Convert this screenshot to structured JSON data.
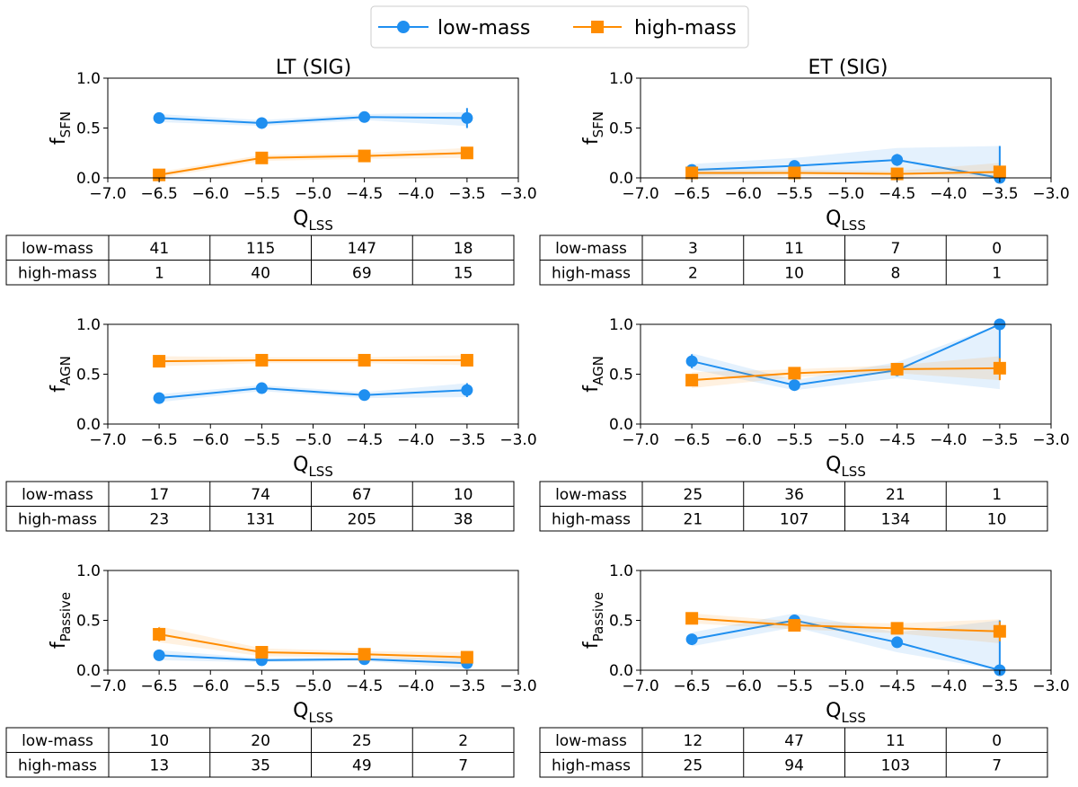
{
  "colors": {
    "low": "#1f8ff0",
    "high": "#ff8c00",
    "axis": "#000000"
  },
  "legend": {
    "placement": "top-center",
    "items": [
      {
        "label": "low-mass",
        "series": "low",
        "marker": "circle"
      },
      {
        "label": "high-mass",
        "series": "high",
        "marker": "square"
      }
    ]
  },
  "column_titles": [
    "LT (SIG)",
    "ET (SIG)"
  ],
  "table_row_labels": [
    "low-mass",
    "high-mass"
  ],
  "chart_data": [
    {
      "id": "lt-sfn",
      "type": "line",
      "title": "LT (SIG)",
      "xlabel": "Q",
      "xlabel_sub": "LSS",
      "ylabel": "f",
      "ylabel_sub": "SFN",
      "x": [
        -6.5,
        -5.5,
        -4.5,
        -3.5
      ],
      "xlim": [
        -7.0,
        -3.0
      ],
      "ylim": [
        0.0,
        1.0
      ],
      "xticks": [
        "−7.0",
        "−6.5",
        "−6.0",
        "−5.5",
        "−5.0",
        "−4.5",
        "−4.0",
        "−3.5",
        "−3.0"
      ],
      "yticks": [
        "0.0",
        "0.5",
        "1.0"
      ],
      "series": [
        {
          "name": "low-mass",
          "key": "low",
          "values": [
            0.6,
            0.55,
            0.61,
            0.6
          ],
          "band_lower": [
            0.56,
            0.52,
            0.58,
            0.52
          ],
          "band_upper": [
            0.64,
            0.58,
            0.64,
            0.66
          ],
          "err_lower": [
            0.57,
            0.53,
            0.59,
            0.5
          ],
          "err_upper": [
            0.63,
            0.57,
            0.63,
            0.7
          ]
        },
        {
          "name": "high-mass",
          "key": "high",
          "values": [
            0.03,
            0.2,
            0.22,
            0.25
          ],
          "band_lower": [
            0.0,
            0.17,
            0.19,
            0.2
          ],
          "band_upper": [
            0.06,
            0.23,
            0.25,
            0.3
          ],
          "err_lower": [
            0.0,
            0.18,
            0.2,
            0.21
          ],
          "err_upper": [
            0.06,
            0.22,
            0.24,
            0.29
          ]
        }
      ],
      "counts": [
        [
          "41",
          "115",
          "147",
          "18"
        ],
        [
          "1",
          "40",
          "69",
          "15"
        ]
      ]
    },
    {
      "id": "et-sfn",
      "type": "line",
      "title": "ET (SIG)",
      "xlabel": "Q",
      "xlabel_sub": "LSS",
      "ylabel": "f",
      "ylabel_sub": "SFN",
      "x": [
        -6.5,
        -5.5,
        -4.5,
        -3.5
      ],
      "xlim": [
        -7.0,
        -3.0
      ],
      "ylim": [
        0.0,
        1.0
      ],
      "xticks": [
        "−7.0",
        "−6.5",
        "−6.0",
        "−5.5",
        "−5.0",
        "−4.5",
        "−4.0",
        "−3.5",
        "−3.0"
      ],
      "yticks": [
        "0.0",
        "0.5",
        "1.0"
      ],
      "series": [
        {
          "name": "low-mass",
          "key": "low",
          "values": [
            0.08,
            0.12,
            0.18,
            0.0
          ],
          "band_lower": [
            0.02,
            0.04,
            0.06,
            0.0
          ],
          "band_upper": [
            0.14,
            0.2,
            0.3,
            0.32
          ],
          "err_lower": [
            0.03,
            0.08,
            0.12,
            0.0
          ],
          "err_upper": [
            0.13,
            0.16,
            0.24,
            0.32
          ]
        },
        {
          "name": "high-mass",
          "key": "high",
          "values": [
            0.05,
            0.05,
            0.04,
            0.06
          ],
          "band_lower": [
            0.01,
            0.02,
            0.01,
            0.0
          ],
          "band_upper": [
            0.09,
            0.08,
            0.07,
            0.15
          ],
          "err_lower": [
            0.02,
            0.03,
            0.02,
            0.0
          ],
          "err_upper": [
            0.08,
            0.07,
            0.06,
            0.12
          ]
        }
      ],
      "counts": [
        [
          "3",
          "11",
          "7",
          "0"
        ],
        [
          "2",
          "10",
          "8",
          "1"
        ]
      ]
    },
    {
      "id": "lt-agn",
      "type": "line",
      "title": "",
      "xlabel": "Q",
      "xlabel_sub": "LSS",
      "ylabel": "f",
      "ylabel_sub": "AGN",
      "x": [
        -6.5,
        -5.5,
        -4.5,
        -3.5
      ],
      "xlim": [
        -7.0,
        -3.0
      ],
      "ylim": [
        0.0,
        1.0
      ],
      "xticks": [
        "−7.0",
        "−6.5",
        "−6.0",
        "−5.5",
        "−5.0",
        "−4.5",
        "−4.0",
        "−3.5",
        "−3.0"
      ],
      "yticks": [
        "0.0",
        "0.5",
        "1.0"
      ],
      "series": [
        {
          "name": "low-mass",
          "key": "low",
          "values": [
            0.26,
            0.36,
            0.29,
            0.34
          ],
          "band_lower": [
            0.22,
            0.33,
            0.26,
            0.27
          ],
          "band_upper": [
            0.3,
            0.39,
            0.32,
            0.41
          ],
          "err_lower": [
            0.22,
            0.33,
            0.27,
            0.27
          ],
          "err_upper": [
            0.3,
            0.39,
            0.31,
            0.41
          ]
        },
        {
          "name": "high-mass",
          "key": "high",
          "values": [
            0.63,
            0.64,
            0.64,
            0.64
          ],
          "band_lower": [
            0.58,
            0.61,
            0.61,
            0.59
          ],
          "band_upper": [
            0.68,
            0.67,
            0.67,
            0.69
          ],
          "err_lower": [
            0.57,
            0.62,
            0.62,
            0.6
          ],
          "err_upper": [
            0.69,
            0.66,
            0.66,
            0.68
          ]
        }
      ],
      "counts": [
        [
          "17",
          "74",
          "67",
          "10"
        ],
        [
          "23",
          "131",
          "205",
          "38"
        ]
      ]
    },
    {
      "id": "et-agn",
      "type": "line",
      "title": "",
      "xlabel": "Q",
      "xlabel_sub": "LSS",
      "ylabel": "f",
      "ylabel_sub": "AGN",
      "x": [
        -6.5,
        -5.5,
        -4.5,
        -3.5
      ],
      "xlim": [
        -7.0,
        -3.0
      ],
      "ylim": [
        0.0,
        1.0
      ],
      "xticks": [
        "−7.0",
        "−6.5",
        "−6.0",
        "−5.5",
        "−5.0",
        "−4.5",
        "−4.0",
        "−3.5",
        "−3.0"
      ],
      "yticks": [
        "0.0",
        "0.5",
        "1.0"
      ],
      "series": [
        {
          "name": "low-mass",
          "key": "low",
          "values": [
            0.63,
            0.39,
            0.54,
            1.0
          ],
          "band_lower": [
            0.55,
            0.34,
            0.46,
            0.35
          ],
          "band_upper": [
            0.71,
            0.44,
            0.62,
            1.0
          ],
          "err_lower": [
            0.56,
            0.36,
            0.48,
            0.5
          ],
          "err_upper": [
            0.7,
            0.42,
            0.6,
            1.0
          ]
        },
        {
          "name": "high-mass",
          "key": "high",
          "values": [
            0.44,
            0.51,
            0.55,
            0.56
          ],
          "band_lower": [
            0.36,
            0.47,
            0.51,
            0.44
          ],
          "band_upper": [
            0.52,
            0.55,
            0.59,
            0.68
          ],
          "err_lower": [
            0.38,
            0.48,
            0.52,
            0.44
          ],
          "err_upper": [
            0.5,
            0.54,
            0.58,
            0.66
          ]
        }
      ],
      "counts": [
        [
          "25",
          "36",
          "21",
          "1"
        ],
        [
          "21",
          "107",
          "134",
          "10"
        ]
      ]
    },
    {
      "id": "lt-passive",
      "type": "line",
      "title": "",
      "xlabel": "Q",
      "xlabel_sub": "LSS",
      "ylabel": "f",
      "ylabel_sub": "Passive",
      "x": [
        -6.5,
        -5.5,
        -4.5,
        -3.5
      ],
      "xlim": [
        -7.0,
        -3.0
      ],
      "ylim": [
        0.0,
        1.0
      ],
      "xticks": [
        "−7.0",
        "−6.5",
        "−6.0",
        "−5.5",
        "−5.0",
        "−4.5",
        "−4.0",
        "−3.5",
        "−3.0"
      ],
      "yticks": [
        "0.0",
        "0.5",
        "1.0"
      ],
      "series": [
        {
          "name": "low-mass",
          "key": "low",
          "values": [
            0.15,
            0.1,
            0.11,
            0.07
          ],
          "band_lower": [
            0.1,
            0.08,
            0.09,
            0.02
          ],
          "band_upper": [
            0.2,
            0.12,
            0.13,
            0.12
          ],
          "err_lower": [
            0.11,
            0.08,
            0.09,
            0.03
          ],
          "err_upper": [
            0.19,
            0.12,
            0.13,
            0.11
          ]
        },
        {
          "name": "high-mass",
          "key": "high",
          "values": [
            0.36,
            0.18,
            0.16,
            0.13
          ],
          "band_lower": [
            0.28,
            0.14,
            0.13,
            0.08
          ],
          "band_upper": [
            0.44,
            0.22,
            0.19,
            0.18
          ],
          "err_lower": [
            0.29,
            0.15,
            0.14,
            0.09
          ],
          "err_upper": [
            0.43,
            0.21,
            0.18,
            0.17
          ]
        }
      ],
      "counts": [
        [
          "10",
          "20",
          "25",
          "2"
        ],
        [
          "13",
          "35",
          "49",
          "7"
        ]
      ]
    },
    {
      "id": "et-passive",
      "type": "line",
      "title": "",
      "xlabel": "Q",
      "xlabel_sub": "LSS",
      "ylabel": "f",
      "ylabel_sub": "Passive",
      "x": [
        -6.5,
        -5.5,
        -4.5,
        -3.5
      ],
      "xlim": [
        -7.0,
        -3.0
      ],
      "ylim": [
        0.0,
        1.0
      ],
      "xticks": [
        "−7.0",
        "−6.5",
        "−6.0",
        "−5.5",
        "−5.0",
        "−4.5",
        "−4.0",
        "−3.5",
        "−3.0"
      ],
      "yticks": [
        "0.0",
        "0.5",
        "1.0"
      ],
      "series": [
        {
          "name": "low-mass",
          "key": "low",
          "values": [
            0.31,
            0.5,
            0.28,
            0.0
          ],
          "band_lower": [
            0.24,
            0.43,
            0.18,
            0.0
          ],
          "band_upper": [
            0.38,
            0.57,
            0.38,
            0.5
          ],
          "err_lower": [
            0.26,
            0.45,
            0.24,
            0.0
          ],
          "err_upper": [
            0.36,
            0.55,
            0.32,
            0.5
          ]
        },
        {
          "name": "high-mass",
          "key": "high",
          "values": [
            0.52,
            0.45,
            0.42,
            0.39
          ],
          "band_lower": [
            0.47,
            0.41,
            0.37,
            0.27
          ],
          "band_upper": [
            0.57,
            0.49,
            0.47,
            0.51
          ],
          "err_lower": [
            0.48,
            0.42,
            0.39,
            0.29
          ],
          "err_upper": [
            0.56,
            0.48,
            0.45,
            0.49
          ]
        }
      ],
      "counts": [
        [
          "12",
          "47",
          "11",
          "0"
        ],
        [
          "25",
          "94",
          "103",
          "7"
        ]
      ]
    }
  ]
}
